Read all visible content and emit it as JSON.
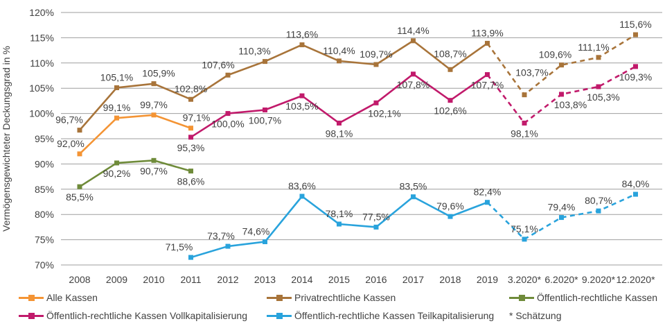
{
  "chart_data": {
    "type": "line",
    "title": "",
    "ylabel": "Vermögensgewichteter Deckungsgrad in %",
    "xlabel": "",
    "grid": "horizontal",
    "legend_position": "bottom",
    "y_axis": {
      "min": 70,
      "max": 120,
      "step": 5,
      "suffix": "%"
    },
    "categories": [
      "2008",
      "2009",
      "2010",
      "2011",
      "2012",
      "2013",
      "2014",
      "2015",
      "2016",
      "2017",
      "2018",
      "2019",
      "3.2020*",
      "6.2020*",
      "9.2020*",
      "12.2020*"
    ],
    "estimate_note": "* Schätzung",
    "series": [
      {
        "name": "Alle Kassen",
        "color": "#F49434",
        "points": [
          {
            "c": "2008",
            "v": 92.0,
            "label": "92,0%",
            "pos": "above",
            "dx": -13
          },
          {
            "c": "2009",
            "v": 99.1,
            "label": "99,1%",
            "pos": "above"
          },
          {
            "c": "2010",
            "v": 99.7,
            "label": "99,7%",
            "pos": "above"
          },
          {
            "c": "2011",
            "v": 97.1,
            "label": "97,1%",
            "pos": "above",
            "dx": 8
          }
        ]
      },
      {
        "name": "Privatrechtliche Kassen",
        "color": "#A8743A",
        "dash_start_category": "2019",
        "points": [
          {
            "c": "2008",
            "v": 96.7,
            "label": "96,7%",
            "pos": "above",
            "dx": -15
          },
          {
            "c": "2009",
            "v": 105.1,
            "label": "105,1%",
            "pos": "above"
          },
          {
            "c": "2010",
            "v": 105.9,
            "label": "105,9%",
            "pos": "above",
            "dx": 7
          },
          {
            "c": "2011",
            "v": 102.8,
            "label": "102,8%",
            "pos": "above"
          },
          {
            "c": "2012",
            "v": 107.6,
            "label": "107,6%",
            "pos": "above",
            "dx": -14
          },
          {
            "c": "2013",
            "v": 110.3,
            "label": "110,3%",
            "pos": "above",
            "dx": -15
          },
          {
            "c": "2014",
            "v": 113.6,
            "label": "113,6%",
            "pos": "above"
          },
          {
            "c": "2015",
            "v": 110.4,
            "label": "110,4%",
            "pos": "above"
          },
          {
            "c": "2016",
            "v": 109.7,
            "label": "109,7%",
            "pos": "above"
          },
          {
            "c": "2017",
            "v": 114.4,
            "label": "114,4%",
            "pos": "above"
          },
          {
            "c": "2018",
            "v": 108.7,
            "label": "108,7%",
            "pos": "above",
            "dy": -8
          },
          {
            "c": "2019",
            "v": 113.9,
            "label": "113,9%",
            "pos": "above"
          },
          {
            "c": "3.2020*",
            "v": 103.7,
            "label": "103,7%",
            "pos": "above",
            "dx": 11,
            "dy": -17
          },
          {
            "c": "6.2020*",
            "v": 109.6,
            "label": "109,6%",
            "pos": "above",
            "dx": -9
          },
          {
            "c": "9.2020*",
            "v": 111.1,
            "label": "111,1%",
            "pos": "above",
            "dx": -7
          },
          {
            "c": "12.2020*",
            "v": 115.6,
            "label": "115,6%",
            "pos": "above"
          }
        ]
      },
      {
        "name": "Öffentlich-rechtliche Kassen",
        "color": "#6F8B3A",
        "points": [
          {
            "c": "2008",
            "v": 85.5,
            "label": "85,5%",
            "pos": "below"
          },
          {
            "c": "2009",
            "v": 90.2,
            "label": "90,2%",
            "pos": "below"
          },
          {
            "c": "2010",
            "v": 90.7,
            "label": "90,7%",
            "pos": "below"
          },
          {
            "c": "2011",
            "v": 88.6,
            "label": "88,6%",
            "pos": "below"
          }
        ]
      },
      {
        "name": "Öffentlich-rechtliche Kassen Vollkapitalisierung",
        "color": "#C11A6B",
        "dash_start_category": "2019",
        "points": [
          {
            "c": "2011",
            "v": 95.3,
            "label": "95,3%",
            "pos": "below"
          },
          {
            "c": "2012",
            "v": 100.0,
            "label": "100,0%",
            "pos": "below"
          },
          {
            "c": "2013",
            "v": 100.7,
            "label": "100,7%",
            "pos": "below"
          },
          {
            "c": "2014",
            "v": 103.5,
            "label": "103,5%",
            "pos": "below"
          },
          {
            "c": "2015",
            "v": 98.1,
            "label": "98,1%",
            "pos": "below"
          },
          {
            "c": "2016",
            "v": 102.1,
            "label": "102,1%",
            "pos": "below",
            "dx": 12
          },
          {
            "c": "2017",
            "v": 107.8,
            "label": "107,8%",
            "pos": "below"
          },
          {
            "c": "2018",
            "v": 102.6,
            "label": "102,6%",
            "pos": "below"
          },
          {
            "c": "2019",
            "v": 107.7,
            "label": "107,7%",
            "pos": "below"
          },
          {
            "c": "3.2020*",
            "v": 98.1,
            "label": "98,1%",
            "pos": "below"
          },
          {
            "c": "6.2020*",
            "v": 103.8,
            "label": "103,8%",
            "pos": "below",
            "dx": 13
          },
          {
            "c": "9.2020*",
            "v": 105.3,
            "label": "105,3%",
            "pos": "below",
            "dx": 7
          },
          {
            "c": "12.2020*",
            "v": 109.3,
            "label": "109,3%",
            "pos": "below"
          }
        ]
      },
      {
        "name": "Öffentlich-rechtliche Kassen Teilkapitalisierung",
        "color": "#29A3DC",
        "dash_start_category": "2019",
        "points": [
          {
            "c": "2011",
            "v": 71.5,
            "label": "71,5%",
            "pos": "above",
            "dx": -17
          },
          {
            "c": "2012",
            "v": 73.7,
            "label": "73,7%",
            "pos": "above",
            "dx": -10
          },
          {
            "c": "2013",
            "v": 74.6,
            "label": "74,6%",
            "pos": "above",
            "dx": -13
          },
          {
            "c": "2014",
            "v": 83.6,
            "label": "83,6%",
            "pos": "above"
          },
          {
            "c": "2015",
            "v": 78.1,
            "label": "78,1%",
            "pos": "above"
          },
          {
            "c": "2016",
            "v": 77.5,
            "label": "77,5%",
            "pos": "above"
          },
          {
            "c": "2017",
            "v": 83.5,
            "label": "83,5%",
            "pos": "above"
          },
          {
            "c": "2018",
            "v": 79.6,
            "label": "79,6%",
            "pos": "above"
          },
          {
            "c": "2019",
            "v": 82.4,
            "label": "82,4%",
            "pos": "above"
          },
          {
            "c": "3.2020*",
            "v": 75.1,
            "label": "75,1%",
            "pos": "above"
          },
          {
            "c": "6.2020*",
            "v": 79.4,
            "label": "79,4%",
            "pos": "above"
          },
          {
            "c": "9.2020*",
            "v": 80.7,
            "label": "80,7%",
            "pos": "above"
          },
          {
            "c": "12.2020*",
            "v": 84.0,
            "label": "84,0%",
            "pos": "above"
          }
        ]
      }
    ]
  },
  "legend": {
    "items": [
      {
        "label": "Alle Kassen",
        "color": "#F49434"
      },
      {
        "label": "Privatrechtliche Kassen",
        "color": "#A8743A"
      },
      {
        "label": "Öffentlich-rechtliche Kassen",
        "color": "#6F8B3A"
      },
      {
        "label": "Öffentlich-rechtliche Kassen Vollkapitalisierung",
        "color": "#C11A6B"
      },
      {
        "label": "Öffentlich-rechtliche Kassen Teilkapitalisierung",
        "color": "#29A3DC"
      }
    ],
    "footnote": "* Schätzung"
  },
  "colors": {
    "grid": "#9E9E9E",
    "text": "#404040",
    "background": "#FFFFFF"
  }
}
